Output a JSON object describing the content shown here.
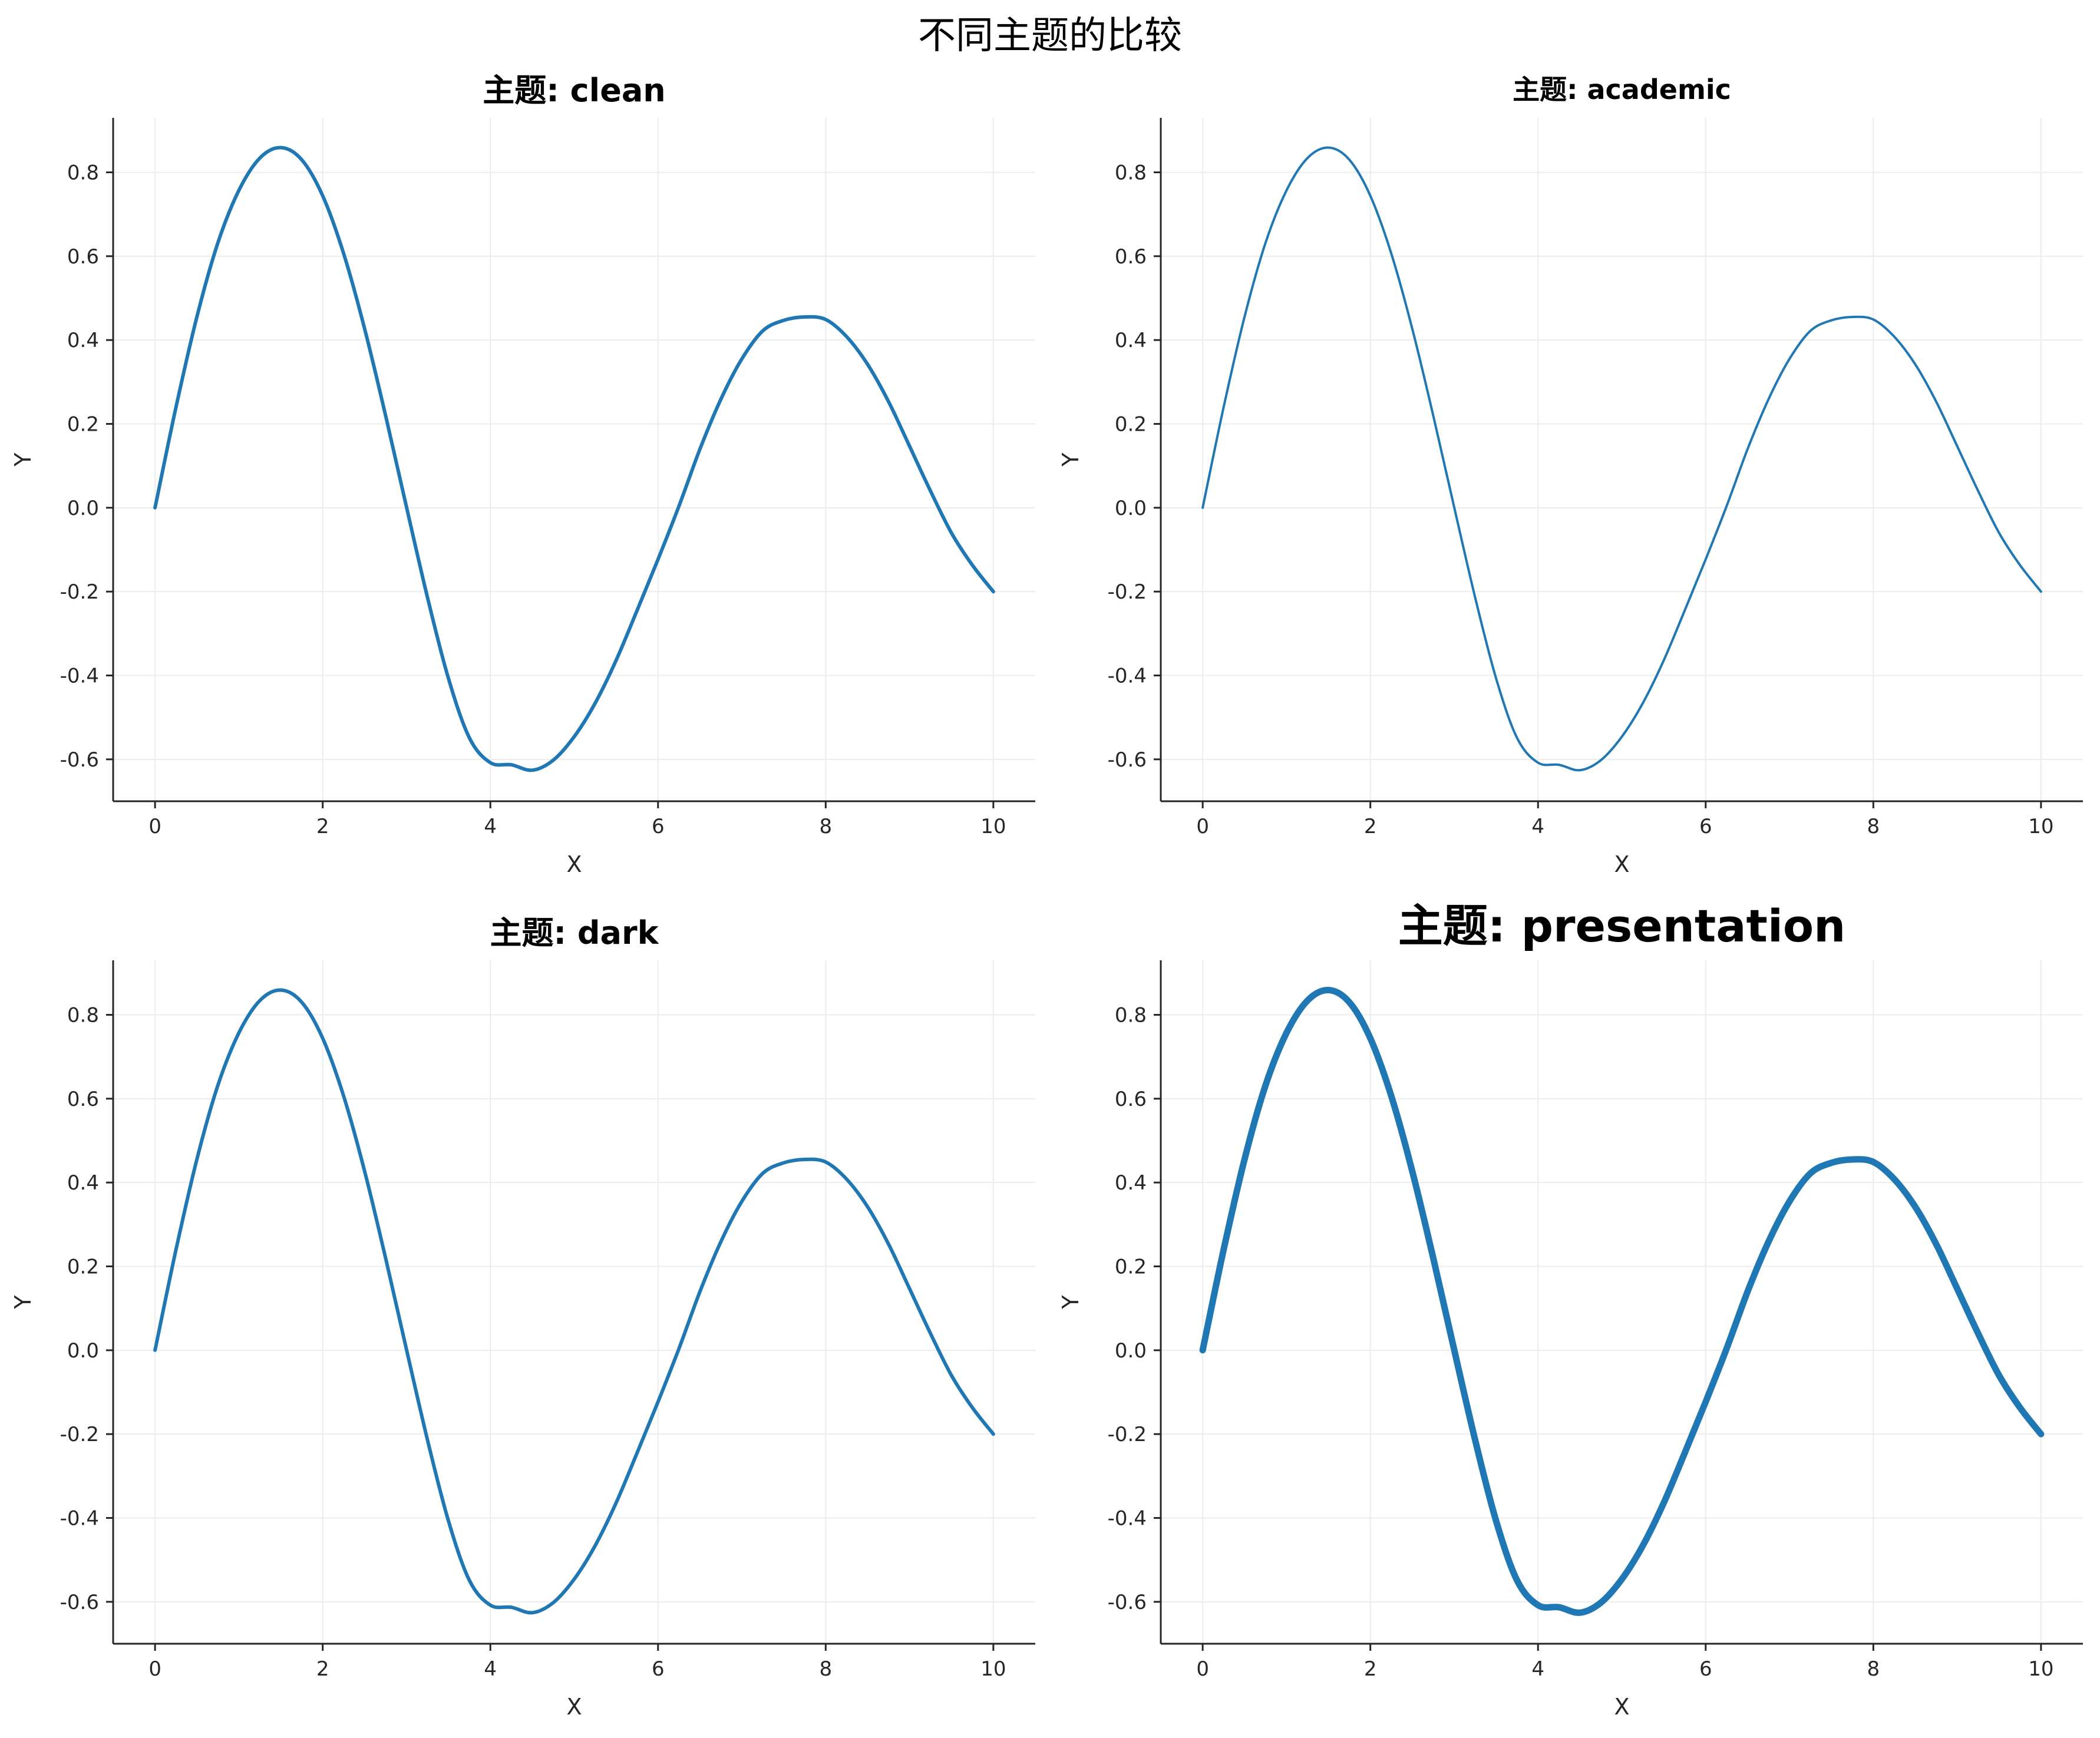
{
  "figure": {
    "suptitle": "不同主题的比较"
  },
  "colors": {
    "line": "#1f77b4",
    "axis": "#262626",
    "grid": "#ececec",
    "background": "#ffffff"
  },
  "chart_data": [
    {
      "type": "line",
      "title": "主题: clean",
      "xlabel": "X",
      "ylabel": "Y",
      "xlim": [
        -0.5,
        10.5
      ],
      "ylim": [
        -0.7,
        0.93
      ],
      "xticks": [
        0,
        2,
        4,
        6,
        8,
        10
      ],
      "yticks": [
        -0.6,
        -0.4,
        -0.2,
        0.0,
        0.2,
        0.4,
        0.6,
        0.8
      ],
      "grid": true,
      "x": [
        0,
        0.25,
        0.5,
        0.75,
        1.0,
        1.25,
        1.5,
        1.75,
        2.0,
        2.25,
        2.5,
        2.75,
        3.0,
        3.25,
        3.5,
        3.75,
        4.0,
        4.25,
        4.5,
        4.75,
        5.0,
        5.25,
        5.5,
        5.75,
        6.0,
        6.25,
        6.5,
        6.75,
        7.0,
        7.25,
        7.5,
        7.75,
        8.0,
        8.25,
        8.5,
        8.75,
        9.0,
        9.25,
        9.5,
        9.75,
        10.0
      ],
      "y": [
        0.0,
        0.24,
        0.456,
        0.632,
        0.757,
        0.834,
        0.859,
        0.83,
        0.744,
        0.606,
        0.427,
        0.22,
        0.001,
        -0.214,
        -0.407,
        -0.549,
        -0.608,
        -0.613,
        -0.626,
        -0.602,
        -0.546,
        -0.466,
        -0.364,
        -0.245,
        -0.123,
        0.004,
        0.14,
        0.259,
        0.355,
        0.422,
        0.447,
        0.455,
        0.449,
        0.408,
        0.342,
        0.253,
        0.147,
        0.04,
        -0.06,
        -0.137,
        -0.2
      ],
      "series_name": "",
      "line_width": 6
    },
    {
      "type": "line",
      "title": "主题: academic",
      "xlabel": "X",
      "ylabel": "Y",
      "xlim": [
        -0.5,
        10.5
      ],
      "ylim": [
        -0.7,
        0.93
      ],
      "xticks": [
        0,
        2,
        4,
        6,
        8,
        10
      ],
      "yticks": [
        -0.6,
        -0.4,
        -0.2,
        0.0,
        0.2,
        0.4,
        0.6,
        0.8
      ],
      "grid": true,
      "x": [
        0,
        0.25,
        0.5,
        0.75,
        1.0,
        1.25,
        1.5,
        1.75,
        2.0,
        2.25,
        2.5,
        2.75,
        3.0,
        3.25,
        3.5,
        3.75,
        4.0,
        4.25,
        4.5,
        4.75,
        5.0,
        5.25,
        5.5,
        5.75,
        6.0,
        6.25,
        6.5,
        6.75,
        7.0,
        7.25,
        7.5,
        7.75,
        8.0,
        8.25,
        8.5,
        8.75,
        9.0,
        9.25,
        9.5,
        9.75,
        10.0
      ],
      "y": [
        0.0,
        0.24,
        0.456,
        0.632,
        0.757,
        0.834,
        0.859,
        0.83,
        0.744,
        0.606,
        0.427,
        0.22,
        0.001,
        -0.214,
        -0.407,
        -0.549,
        -0.608,
        -0.613,
        -0.626,
        -0.602,
        -0.546,
        -0.466,
        -0.364,
        -0.245,
        -0.123,
        0.004,
        0.14,
        0.259,
        0.355,
        0.422,
        0.447,
        0.455,
        0.449,
        0.408,
        0.342,
        0.253,
        0.147,
        0.04,
        -0.06,
        -0.137,
        -0.2
      ],
      "line_width": 4
    },
    {
      "type": "line",
      "title": "主题: dark",
      "xlabel": "X",
      "ylabel": "Y",
      "xlim": [
        -0.5,
        10.5
      ],
      "ylim": [
        -0.7,
        0.93
      ],
      "xticks": [
        0,
        2,
        4,
        6,
        8,
        10
      ],
      "yticks": [
        -0.6,
        -0.4,
        -0.2,
        0.0,
        0.2,
        0.4,
        0.6,
        0.8
      ],
      "grid": true,
      "x": [
        0,
        0.25,
        0.5,
        0.75,
        1.0,
        1.25,
        1.5,
        1.75,
        2.0,
        2.25,
        2.5,
        2.75,
        3.0,
        3.25,
        3.5,
        3.75,
        4.0,
        4.25,
        4.5,
        4.75,
        5.0,
        5.25,
        5.5,
        5.75,
        6.0,
        6.25,
        6.5,
        6.75,
        7.0,
        7.25,
        7.5,
        7.75,
        8.0,
        8.25,
        8.5,
        8.75,
        9.0,
        9.25,
        9.5,
        9.75,
        10.0
      ],
      "y": [
        0.0,
        0.24,
        0.456,
        0.632,
        0.757,
        0.834,
        0.859,
        0.83,
        0.744,
        0.606,
        0.427,
        0.22,
        0.001,
        -0.214,
        -0.407,
        -0.549,
        -0.608,
        -0.613,
        -0.626,
        -0.602,
        -0.546,
        -0.466,
        -0.364,
        -0.245,
        -0.123,
        0.004,
        0.14,
        0.259,
        0.355,
        0.422,
        0.447,
        0.455,
        0.449,
        0.408,
        0.342,
        0.253,
        0.147,
        0.04,
        -0.06,
        -0.137,
        -0.2
      ],
      "line_width": 6
    },
    {
      "type": "line",
      "title": "主题: presentation",
      "xlabel": "X",
      "ylabel": "Y",
      "xlim": [
        -0.5,
        10.5
      ],
      "ylim": [
        -0.7,
        0.93
      ],
      "xticks": [
        0,
        2,
        4,
        6,
        8,
        10
      ],
      "yticks": [
        -0.6,
        -0.4,
        -0.2,
        0.0,
        0.2,
        0.4,
        0.6,
        0.8
      ],
      "grid": true,
      "x": [
        0,
        0.25,
        0.5,
        0.75,
        1.0,
        1.25,
        1.5,
        1.75,
        2.0,
        2.25,
        2.5,
        2.75,
        3.0,
        3.25,
        3.5,
        3.75,
        4.0,
        4.25,
        4.5,
        4.75,
        5.0,
        5.25,
        5.5,
        5.75,
        6.0,
        6.25,
        6.5,
        6.75,
        7.0,
        7.25,
        7.5,
        7.75,
        8.0,
        8.25,
        8.5,
        8.75,
        9.0,
        9.25,
        9.5,
        9.75,
        10.0
      ],
      "y": [
        0.0,
        0.24,
        0.456,
        0.632,
        0.757,
        0.834,
        0.859,
        0.83,
        0.744,
        0.606,
        0.427,
        0.22,
        0.001,
        -0.214,
        -0.407,
        -0.549,
        -0.608,
        -0.613,
        -0.626,
        -0.602,
        -0.546,
        -0.466,
        -0.364,
        -0.245,
        -0.123,
        0.004,
        0.14,
        0.259,
        0.355,
        0.422,
        0.447,
        0.455,
        0.449,
        0.408,
        0.342,
        0.253,
        0.147,
        0.04,
        -0.06,
        -0.137,
        -0.2
      ],
      "line_width": 11
    }
  ]
}
